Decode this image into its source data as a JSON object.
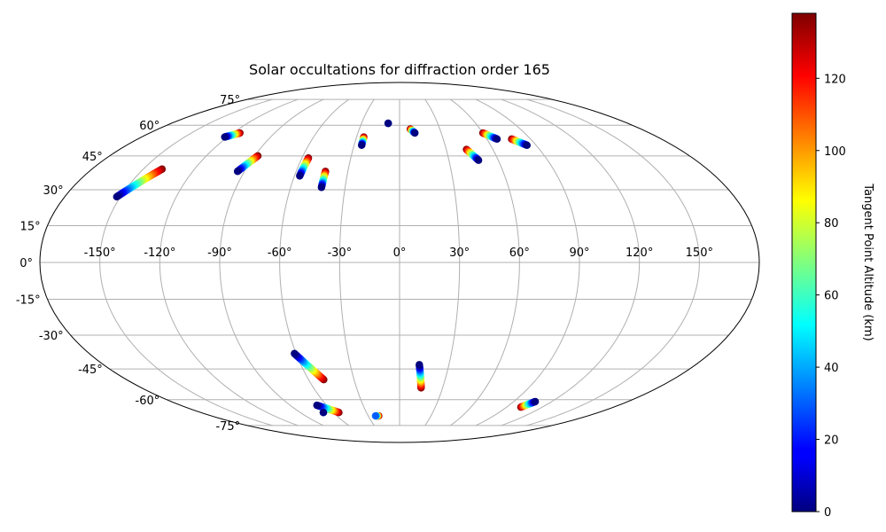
{
  "chart_data": {
    "type": "scatter",
    "projection": "mollweide",
    "title": "Solar occultations for diffraction order 165",
    "grid": true,
    "x_ticks": [
      "-150°",
      "-120°",
      "-90°",
      "-60°",
      "-30°",
      "0°",
      "30°",
      "60°",
      "90°",
      "120°",
      "150°"
    ],
    "y_ticks": [
      "75°",
      "60°",
      "45°",
      "30°",
      "15°",
      "0°",
      "-15°",
      "-30°",
      "-45°",
      "-60°",
      "-75°"
    ],
    "xlabel": "",
    "ylabel": "",
    "colorbar": {
      "label": "Tangent Point Altitude (km)",
      "cmap": "jet",
      "range": [
        0,
        138
      ],
      "ticks": [
        "0",
        "20",
        "40",
        "60",
        "80",
        "100",
        "120"
      ]
    },
    "series": [
      {
        "lon_start": -152,
        "lat_start": 27,
        "lon_end": -139,
        "lat_end": 39,
        "alt_start": 0,
        "alt_end": 138
      },
      {
        "lon_start": -122,
        "lat_start": 54,
        "lon_end": -115,
        "lat_end": 56,
        "alt_start": 0,
        "alt_end": 138
      },
      {
        "lon_start": -94,
        "lat_start": 38,
        "lon_end": -88,
        "lat_end": 45,
        "alt_start": 0,
        "alt_end": 138
      },
      {
        "lon_start": -57,
        "lat_start": 36,
        "lon_end": -56,
        "lat_end": 44,
        "alt_start": 0,
        "alt_end": 138
      },
      {
        "lon_start": -43,
        "lat_start": 31,
        "lon_end": -43,
        "lat_end": 38,
        "alt_start": 0,
        "alt_end": 138
      },
      {
        "lon_start": -25,
        "lat_start": 50,
        "lon_end": -25,
        "lat_end": 54,
        "alt_start": 0,
        "alt_end": 138
      },
      {
        "lon_start": -9,
        "lat_start": 61,
        "lon_end": -9,
        "lat_end": 61,
        "alt_start": 0,
        "alt_end": 138
      },
      {
        "lon_start": 11,
        "lat_start": 56,
        "lon_end": 8,
        "lat_end": 58,
        "alt_start": 0,
        "alt_end": 138
      },
      {
        "lon_start": 48,
        "lat_start": 43,
        "lon_end": 43,
        "lat_end": 48,
        "alt_start": 0,
        "alt_end": 138
      },
      {
        "lon_start": 67,
        "lat_start": 53,
        "lon_end": 60,
        "lat_end": 56,
        "alt_start": 0,
        "alt_end": 138
      },
      {
        "lon_start": 84,
        "lat_start": 50,
        "lon_end": 77,
        "lat_end": 53,
        "alt_start": 0,
        "alt_end": 138
      },
      {
        "lon_start": -61,
        "lat_start": -38,
        "lon_end": -50,
        "lat_end": -50,
        "alt_start": 0,
        "alt_end": 138
      },
      {
        "lon_start": -68,
        "lat_start": -63,
        "lon_end": -55,
        "lat_end": -67,
        "alt_start": 0,
        "alt_end": 138
      },
      {
        "lon_start": -69,
        "lat_start": -67,
        "lon_end": -69,
        "lat_end": -67,
        "alt_start": 0,
        "alt_end": 138
      },
      {
        "lon_start": -23,
        "lat_start": -69,
        "lon_end": -20,
        "lat_end": -69,
        "alt_start": 30,
        "alt_end": 138
      },
      {
        "lon_start": 12,
        "lat_start": -43,
        "lon_end": 15,
        "lat_end": -54,
        "alt_start": 0,
        "alt_end": 138
      },
      {
        "lon_start": 107,
        "lat_start": -61,
        "lon_end": 102,
        "lat_end": -64,
        "alt_start": 0,
        "alt_end": 138
      }
    ]
  }
}
